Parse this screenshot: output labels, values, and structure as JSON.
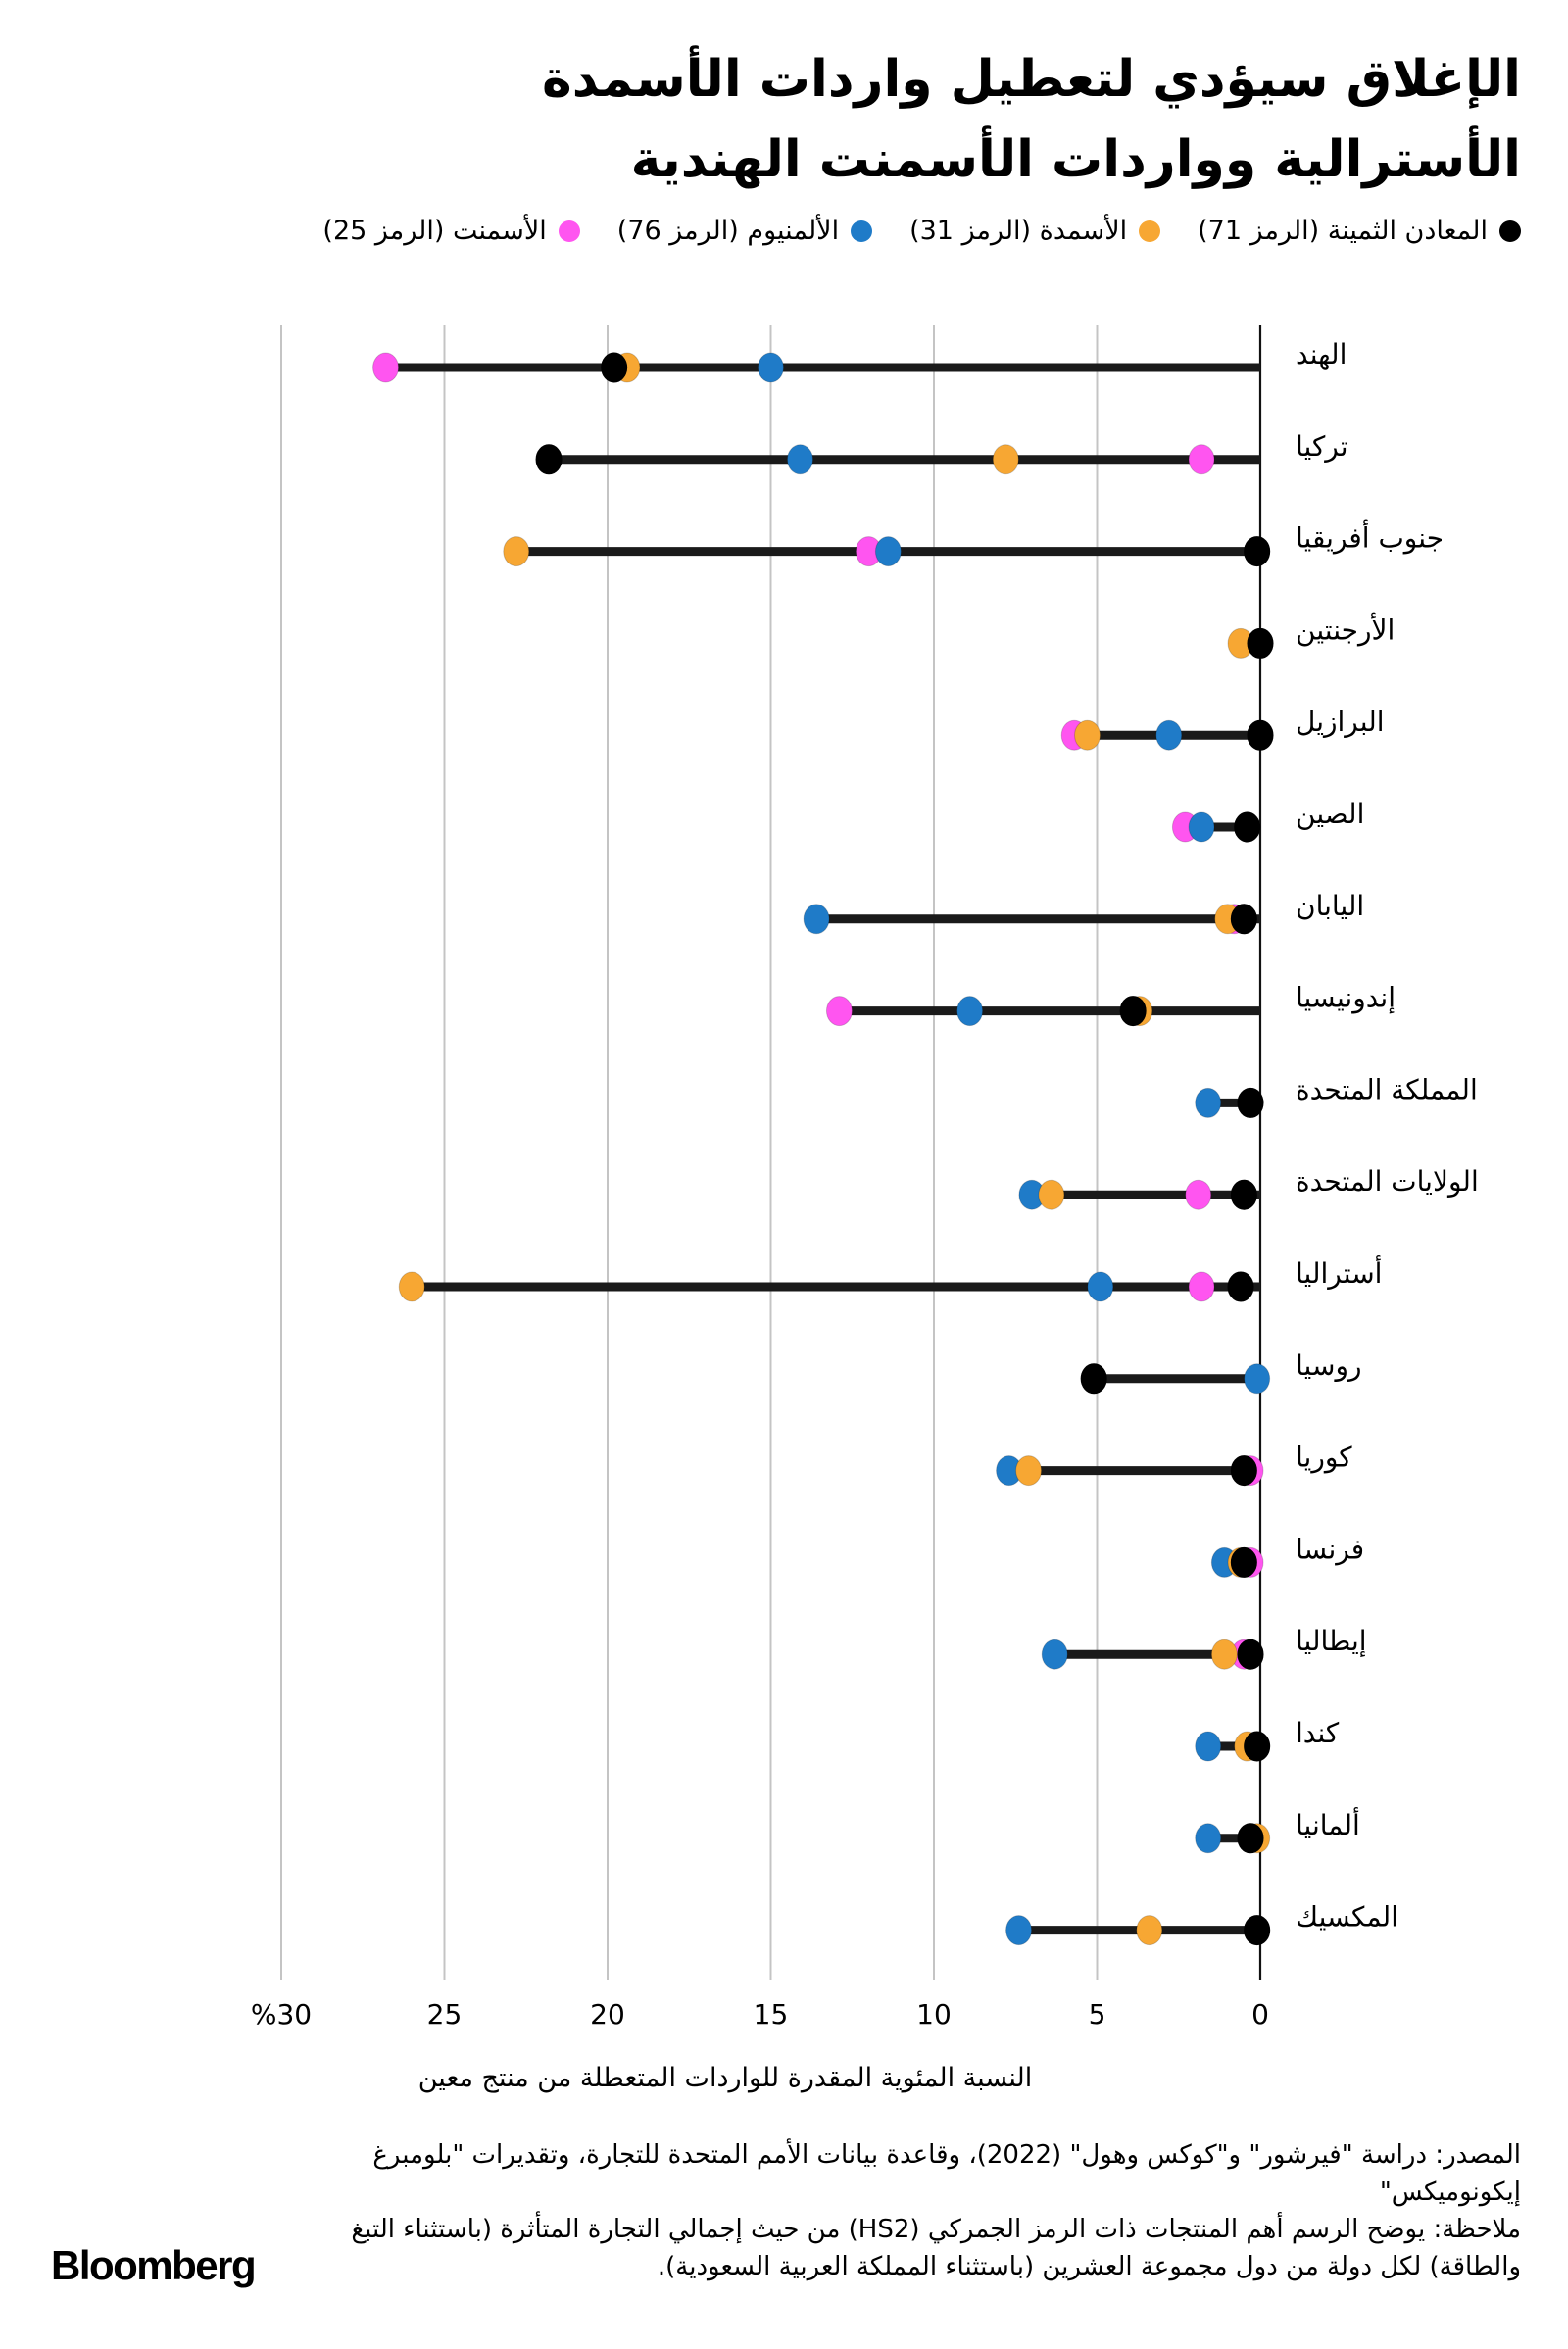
{
  "title": {
    "line1": "الإغلاق سيؤدي لتعطيل واردات الأسمدة",
    "line2": "الأسترالية وواردات الأسمنت الهندية"
  },
  "legend": [
    {
      "label": "المعادن الثمينة (الرمز 71)",
      "color": "#000000",
      "key": "precious_metals"
    },
    {
      "label": "الأسمدة (الرمز 31)",
      "color": "#F7A733",
      "key": "fertilizers"
    },
    {
      "label": "الألمنيوم (الرمز 76)",
      "color": "#1F7BC8",
      "key": "aluminum"
    },
    {
      "label": "الأسمنت (الرمز 25)",
      "color": "#FF55F0",
      "key": "cement"
    }
  ],
  "chart_data": {
    "type": "dot-range",
    "title": "الإغلاق سيؤدي لتعطيل واردات الأسمدة الأسترالية وواردات الأسمنت الهندية",
    "xlabel": "النسبة المئوية المقدرة للواردات المتعطلة من منتج معين",
    "ylabel": "",
    "xlim": [
      0,
      30
    ],
    "x_direction": "right-to-left",
    "xticks": [
      0,
      5,
      10,
      15,
      20,
      25,
      30
    ],
    "xtick_labels": [
      "0",
      "5",
      "10",
      "15",
      "20",
      "25",
      "%30"
    ],
    "grid": true,
    "legend_position": "top",
    "categories": [
      "الهند",
      "تركيا",
      "جنوب أفريقيا",
      "الأرجنتين",
      "البرازيل",
      "الصين",
      "اليابان",
      "إندونيسيا",
      "المملكة المتحدة",
      "الولايات المتحدة",
      "أستراليا",
      "روسيا",
      "كوريا",
      "فرنسا",
      "إيطاليا",
      "كندا",
      "ألمانيا",
      "المكسيك"
    ],
    "series": [
      {
        "name": "المعادن الثمينة (الرمز 71)",
        "color": "#000000",
        "values": [
          19.8,
          21.8,
          0.1,
          0.0,
          0.0,
          0.4,
          0.5,
          3.9,
          0.3,
          0.5,
          0.6,
          5.1,
          0.5,
          0.5,
          0.3,
          0.1,
          0.3,
          0.1
        ]
      },
      {
        "name": "الأسمدة (الرمز 31)",
        "color": "#F7A733",
        "values": [
          19.4,
          7.8,
          22.8,
          0.6,
          5.3,
          null,
          1.0,
          3.7,
          null,
          6.4,
          26.0,
          null,
          7.1,
          0.6,
          1.1,
          0.4,
          0.1,
          3.4
        ]
      },
      {
        "name": "الألمنيوم (الرمز 76)",
        "color": "#1F7BC8",
        "values": [
          15.0,
          14.1,
          11.4,
          null,
          2.8,
          1.8,
          13.6,
          8.9,
          1.6,
          7.0,
          4.9,
          0.1,
          7.7,
          1.1,
          6.3,
          1.6,
          1.6,
          7.4
        ]
      },
      {
        "name": "الأسمنت (الرمز 25)",
        "color": "#FF55F0",
        "values": [
          26.8,
          1.8,
          12.0,
          null,
          5.7,
          2.3,
          0.8,
          12.9,
          null,
          1.9,
          1.8,
          null,
          0.3,
          0.3,
          0.5,
          null,
          null,
          null
        ]
      }
    ]
  },
  "footer": {
    "source": "المصدر: دراسة \"فيرشور\" و\"كوكس وهول\" (2022)، وقاعدة بيانات الأمم المتحدة للتجارة، وتقديرات \"بلومبرغ إيكونوميكس\"",
    "note": "ملاحظة: يوضح الرسم أهم المنتجات ذات الرمز الجمركي (HS2) من حيث إجمالي التجارة المتأثرة (باستثناء التبغ والطاقة) لكل دولة من دول مجموعة العشرين (باستثناء المملكة العربية السعودية)."
  },
  "brand": "Bloomberg"
}
